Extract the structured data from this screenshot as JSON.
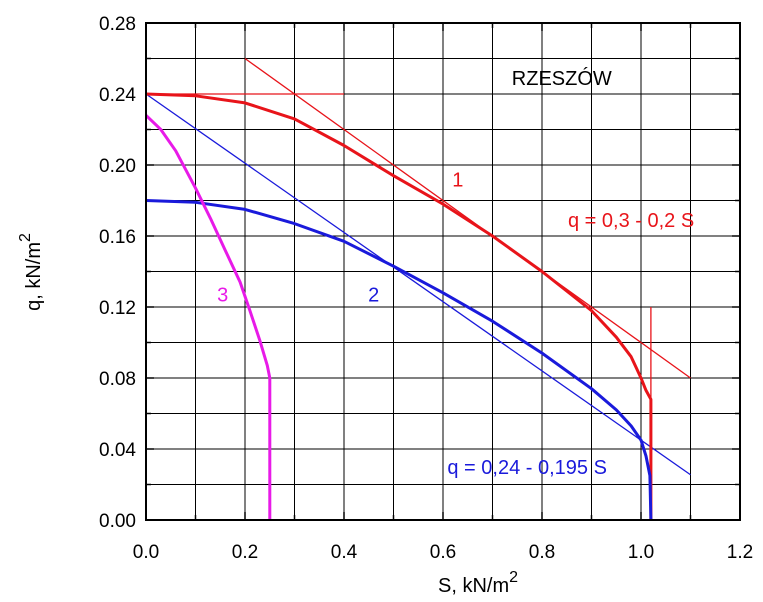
{
  "chart_data": {
    "type": "line",
    "title": "",
    "xlabel": "S, kN/m",
    "xlabel_sup": "2",
    "ylabel": "q, kN/m",
    "ylabel_sup": "2",
    "xlim": [
      0,
      1.2
    ],
    "ylim": [
      0,
      0.28
    ],
    "x_ticks": [
      "0.0",
      "0.2",
      "0.4",
      "0.6",
      "0.8",
      "1.0",
      "1.2"
    ],
    "y_ticks": [
      "0.00",
      "0.04",
      "0.08",
      "0.12",
      "0.16",
      "0.20",
      "0.24",
      "0.28"
    ],
    "grid": true,
    "series": [
      {
        "name": "1",
        "color": "#e8141a",
        "points": [
          [
            0,
            0.24
          ],
          [
            0.1,
            0.239
          ],
          [
            0.2,
            0.235
          ],
          [
            0.3,
            0.226
          ],
          [
            0.4,
            0.211
          ],
          [
            0.5,
            0.194
          ],
          [
            0.6,
            0.178
          ],
          [
            0.7,
            0.16
          ],
          [
            0.8,
            0.14
          ],
          [
            0.9,
            0.118
          ],
          [
            0.95,
            0.103
          ],
          [
            0.98,
            0.092
          ],
          [
            1.0,
            0.08
          ],
          [
            1.01,
            0.073
          ],
          [
            1.02,
            0.068
          ],
          [
            1.02,
            0.0
          ]
        ]
      },
      {
        "name": "2",
        "color": "#1a1adb",
        "points": [
          [
            0,
            0.18
          ],
          [
            0.1,
            0.179
          ],
          [
            0.2,
            0.175
          ],
          [
            0.3,
            0.167
          ],
          [
            0.4,
            0.157
          ],
          [
            0.5,
            0.143
          ],
          [
            0.6,
            0.128
          ],
          [
            0.7,
            0.112
          ],
          [
            0.8,
            0.094
          ],
          [
            0.9,
            0.074
          ],
          [
            0.95,
            0.062
          ],
          [
            0.98,
            0.053
          ],
          [
            1.0,
            0.045
          ],
          [
            1.01,
            0.036
          ],
          [
            1.018,
            0.025
          ],
          [
            1.02,
            0.0
          ]
        ]
      },
      {
        "name": "3",
        "color": "#e81ae8",
        "points": [
          [
            0,
            0.228
          ],
          [
            0.03,
            0.22
          ],
          [
            0.06,
            0.208
          ],
          [
            0.1,
            0.187
          ],
          [
            0.13,
            0.17
          ],
          [
            0.16,
            0.152
          ],
          [
            0.19,
            0.134
          ],
          [
            0.21,
            0.118
          ],
          [
            0.23,
            0.101
          ],
          [
            0.245,
            0.087
          ],
          [
            0.25,
            0.08
          ],
          [
            0.25,
            0.0
          ]
        ]
      }
    ],
    "reference_lines": [
      {
        "name": "red-fit-line",
        "color": "#e8141a",
        "points": [
          [
            0.2,
            0.26
          ],
          [
            1.1,
            0.08
          ]
        ]
      },
      {
        "name": "red-horizontal-line",
        "color": "#e8141a",
        "points": [
          [
            0.0,
            0.24
          ],
          [
            0.4,
            0.24
          ]
        ]
      },
      {
        "name": "red-vertical-line",
        "color": "#e8141a",
        "points": [
          [
            1.02,
            0.12
          ],
          [
            1.02,
            0.0
          ]
        ]
      },
      {
        "name": "blue-fit-line",
        "color": "#1a1adb",
        "points": [
          [
            0.0,
            0.24
          ],
          [
            1.1,
            0.0255
          ]
        ]
      }
    ],
    "annotations": [
      {
        "name": "location-label",
        "text": "RZESZÓW",
        "color": "#000000",
        "x": 0.84,
        "y": 0.245
      },
      {
        "name": "curve-1-label",
        "text": "1",
        "color": "#e8141a",
        "x": 0.63,
        "y": 0.188
      },
      {
        "name": "red-equation-label",
        "text": "q = 0,3 - 0,2 S",
        "color": "#e8141a",
        "x": 0.98,
        "y": 0.165
      },
      {
        "name": "curve-2-label",
        "text": "2",
        "color": "#1a1adb",
        "x": 0.46,
        "y": 0.123
      },
      {
        "name": "curve-3-label",
        "text": "3",
        "color": "#e81ae8",
        "x": 0.155,
        "y": 0.123
      },
      {
        "name": "blue-equation-label",
        "text": "q = 0,24 - 0,195 S",
        "color": "#1a1adb",
        "x": 0.77,
        "y": 0.026
      }
    ]
  }
}
